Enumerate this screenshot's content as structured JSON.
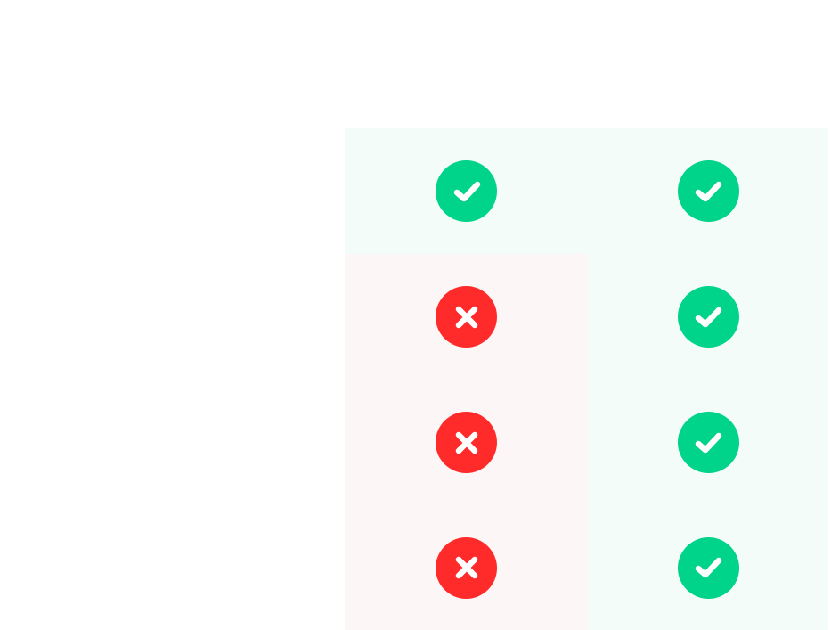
{
  "colors": {
    "check": "#00d38a",
    "cross": "#ff2b2b",
    "check_cell_bg": "#f3fcf9",
    "cross_cell_bg": "#fdf6f6",
    "mark_fg": "#ffffff"
  },
  "comparison": {
    "rows": [
      {
        "cells": [
          {
            "status": "check",
            "icon": "check-circle-icon"
          },
          {
            "status": "check",
            "icon": "check-circle-icon"
          }
        ]
      },
      {
        "cells": [
          {
            "status": "cross",
            "icon": "x-circle-icon"
          },
          {
            "status": "check",
            "icon": "check-circle-icon"
          }
        ]
      },
      {
        "cells": [
          {
            "status": "cross",
            "icon": "x-circle-icon"
          },
          {
            "status": "check",
            "icon": "check-circle-icon"
          }
        ]
      },
      {
        "cells": [
          {
            "status": "cross",
            "icon": "x-circle-icon"
          },
          {
            "status": "check",
            "icon": "check-circle-icon"
          }
        ]
      }
    ]
  }
}
